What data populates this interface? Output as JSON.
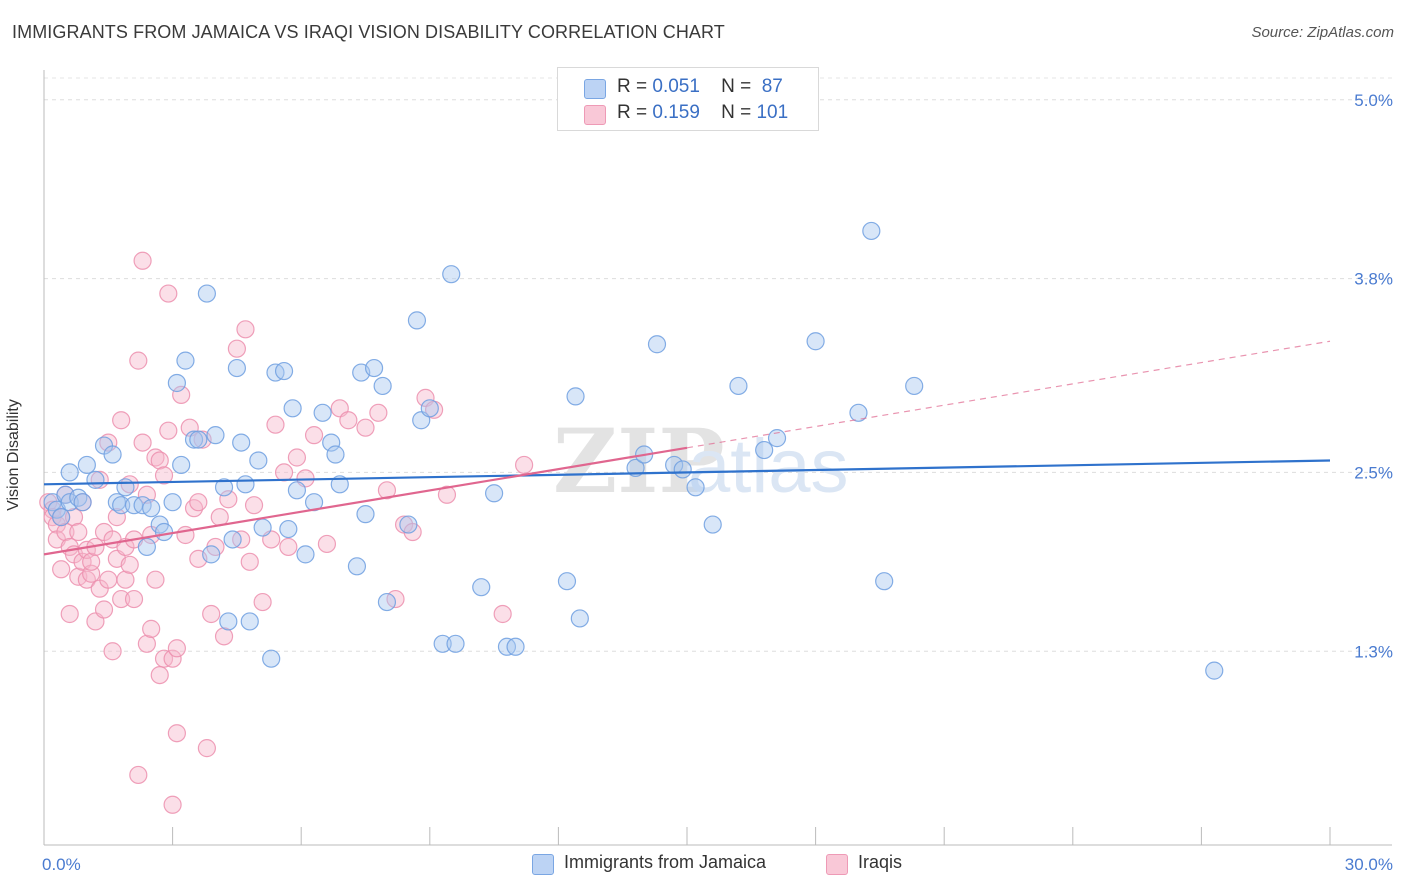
{
  "title": "IMMIGRANTS FROM JAMAICA VS IRAQI VISION DISABILITY CORRELATION CHART",
  "source": "Source: ZipAtlas.com",
  "watermark": {
    "zip": "ZIP",
    "atlas": "atlas"
  },
  "colors": {
    "blue_fill": "#a9c7f0",
    "blue_stroke": "#6f9fe0",
    "blue_line": "#2f72cc",
    "pink_fill": "#f6b9cc",
    "pink_stroke": "#ec8fae",
    "pink_line": "#e0668f",
    "axis_text": "#4a7bd0"
  },
  "legend": {
    "rows": [
      {
        "r_label": "R =",
        "r_value": "0.051",
        "n_label": "N =",
        "n_value": "87"
      },
      {
        "r_label": "R =",
        "r_value": "0.159",
        "n_label": "N =",
        "n_value": "101"
      }
    ]
  },
  "chart_data": {
    "type": "scatter",
    "title": "IMMIGRANTS FROM JAMAICA VS IRAQI VISION DISABILITY CORRELATION CHART",
    "xlabel": "",
    "ylabel": "Vision Disability",
    "xlim": [
      0,
      30
    ],
    "ylim": [
      0,
      5.2
    ],
    "x_tick_labels": [
      "0.0%",
      "30.0%"
    ],
    "y_ticks": [
      1.3,
      2.5,
      3.8,
      5.0
    ],
    "y_tick_labels": [
      "1.3%",
      "2.5%",
      "3.8%",
      "5.0%"
    ],
    "grid": true,
    "legend_position": "top-center",
    "series": [
      {
        "name": "Immigrants from Jamaica",
        "color": "#a9c7f0",
        "trend": {
          "x": [
            0,
            30
          ],
          "y": [
            2.42,
            2.58
          ],
          "dashed_from": null
        },
        "points": [
          [
            0.2,
            2.3
          ],
          [
            0.3,
            2.25
          ],
          [
            0.4,
            2.2
          ],
          [
            0.5,
            2.35
          ],
          [
            0.6,
            2.3
          ],
          [
            0.6,
            2.5
          ],
          [
            0.8,
            2.33
          ],
          [
            0.9,
            2.3
          ],
          [
            1.0,
            2.55
          ],
          [
            1.2,
            2.45
          ],
          [
            1.4,
            2.68
          ],
          [
            1.6,
            2.62
          ],
          [
            1.7,
            2.3
          ],
          [
            1.8,
            2.28
          ],
          [
            1.9,
            2.4
          ],
          [
            2.1,
            2.28
          ],
          [
            2.3,
            2.28
          ],
          [
            2.4,
            2.0
          ],
          [
            2.5,
            2.26
          ],
          [
            2.7,
            2.15
          ],
          [
            2.8,
            2.1
          ],
          [
            3.0,
            2.3
          ],
          [
            3.1,
            3.1
          ],
          [
            3.2,
            2.55
          ],
          [
            3.3,
            3.25
          ],
          [
            3.5,
            2.72
          ],
          [
            3.6,
            2.72
          ],
          [
            3.8,
            3.7
          ],
          [
            3.9,
            1.95
          ],
          [
            4.0,
            2.75
          ],
          [
            4.2,
            2.4
          ],
          [
            4.3,
            1.5
          ],
          [
            4.4,
            2.05
          ],
          [
            4.5,
            3.2
          ],
          [
            4.6,
            2.7
          ],
          [
            4.7,
            2.42
          ],
          [
            4.8,
            1.5
          ],
          [
            5.0,
            2.58
          ],
          [
            5.1,
            2.13
          ],
          [
            5.3,
            1.25
          ],
          [
            5.4,
            3.17
          ],
          [
            5.6,
            3.18
          ],
          [
            5.7,
            2.12
          ],
          [
            5.8,
            2.93
          ],
          [
            5.9,
            2.38
          ],
          [
            6.1,
            1.95
          ],
          [
            6.3,
            2.3
          ],
          [
            6.5,
            2.9
          ],
          [
            6.7,
            2.7
          ],
          [
            6.8,
            2.62
          ],
          [
            6.9,
            2.42
          ],
          [
            7.3,
            1.87
          ],
          [
            7.4,
            3.17
          ],
          [
            7.5,
            2.22
          ],
          [
            7.7,
            3.2
          ],
          [
            7.9,
            3.08
          ],
          [
            8.0,
            1.63
          ],
          [
            8.5,
            2.15
          ],
          [
            8.7,
            3.52
          ],
          [
            8.8,
            2.85
          ],
          [
            9.0,
            2.93
          ],
          [
            9.3,
            1.35
          ],
          [
            9.5,
            3.83
          ],
          [
            9.6,
            1.35
          ],
          [
            10.2,
            1.73
          ],
          [
            10.5,
            2.36
          ],
          [
            10.8,
            1.33
          ],
          [
            11.0,
            1.33
          ],
          [
            12.2,
            1.77
          ],
          [
            12.4,
            3.01
          ],
          [
            12.5,
            1.52
          ],
          [
            13.8,
            2.53
          ],
          [
            14.0,
            2.62
          ],
          [
            14.3,
            3.36
          ],
          [
            14.7,
            2.55
          ],
          [
            14.9,
            2.52
          ],
          [
            15.2,
            2.4
          ],
          [
            15.6,
            2.15
          ],
          [
            16.2,
            3.08
          ],
          [
            16.8,
            2.65
          ],
          [
            17.1,
            2.73
          ],
          [
            18.0,
            3.38
          ],
          [
            19.0,
            2.9
          ],
          [
            19.3,
            4.12
          ],
          [
            19.6,
            1.77
          ],
          [
            20.3,
            3.08
          ],
          [
            27.3,
            1.17
          ]
        ]
      },
      {
        "name": "Iraqis",
        "color": "#f6b9cc",
        "trend": {
          "x": [
            0,
            30
          ],
          "y": [
            1.95,
            3.38
          ],
          "dashed_from": 15
        },
        "points": [
          [
            0.1,
            2.3
          ],
          [
            0.2,
            2.25
          ],
          [
            0.2,
            2.2
          ],
          [
            0.3,
            2.15
          ],
          [
            0.3,
            2.05
          ],
          [
            0.4,
            1.85
          ],
          [
            0.4,
            2.2
          ],
          [
            0.5,
            2.35
          ],
          [
            0.5,
            2.1
          ],
          [
            0.6,
            1.55
          ],
          [
            0.6,
            2.0
          ],
          [
            0.7,
            1.95
          ],
          [
            0.7,
            2.2
          ],
          [
            0.8,
            2.1
          ],
          [
            0.8,
            1.8
          ],
          [
            0.9,
            1.9
          ],
          [
            0.9,
            2.3
          ],
          [
            1.0,
            1.78
          ],
          [
            1.0,
            1.98
          ],
          [
            1.1,
            1.82
          ],
          [
            1.1,
            1.9
          ],
          [
            1.2,
            1.5
          ],
          [
            1.2,
            2.0
          ],
          [
            1.3,
            1.72
          ],
          [
            1.3,
            2.45
          ],
          [
            1.4,
            1.58
          ],
          [
            1.4,
            2.1
          ],
          [
            1.5,
            1.78
          ],
          [
            1.5,
            2.7
          ],
          [
            1.6,
            1.3
          ],
          [
            1.6,
            2.05
          ],
          [
            1.7,
            1.92
          ],
          [
            1.7,
            2.2
          ],
          [
            1.8,
            2.85
          ],
          [
            1.8,
            1.65
          ],
          [
            1.9,
            1.78
          ],
          [
            1.9,
            2.0
          ],
          [
            2.0,
            1.88
          ],
          [
            2.0,
            2.42
          ],
          [
            2.1,
            2.05
          ],
          [
            2.1,
            1.65
          ],
          [
            2.2,
            3.25
          ],
          [
            2.2,
            0.47
          ],
          [
            2.3,
            2.7
          ],
          [
            2.3,
            3.92
          ],
          [
            2.4,
            2.35
          ],
          [
            2.4,
            1.35
          ],
          [
            2.5,
            1.45
          ],
          [
            2.5,
            2.08
          ],
          [
            2.6,
            1.78
          ],
          [
            2.6,
            2.6
          ],
          [
            2.7,
            2.58
          ],
          [
            2.7,
            1.14
          ],
          [
            2.8,
            2.48
          ],
          [
            2.8,
            1.25
          ],
          [
            2.9,
            2.78
          ],
          [
            2.9,
            3.7
          ],
          [
            3.0,
            1.25
          ],
          [
            3.0,
            0.27
          ],
          [
            3.1,
            1.32
          ],
          [
            3.1,
            0.75
          ],
          [
            3.2,
            3.02
          ],
          [
            3.3,
            2.08
          ],
          [
            3.4,
            2.8
          ],
          [
            3.5,
            2.26
          ],
          [
            3.6,
            2.3
          ],
          [
            3.6,
            1.92
          ],
          [
            3.7,
            2.72
          ],
          [
            3.8,
            0.65
          ],
          [
            3.9,
            1.55
          ],
          [
            4.0,
            2.0
          ],
          [
            4.1,
            2.2
          ],
          [
            4.2,
            1.4
          ],
          [
            4.3,
            2.32
          ],
          [
            4.5,
            3.33
          ],
          [
            4.6,
            2.05
          ],
          [
            4.7,
            3.46
          ],
          [
            4.8,
            1.9
          ],
          [
            4.9,
            2.28
          ],
          [
            5.1,
            1.63
          ],
          [
            5.3,
            2.05
          ],
          [
            5.4,
            2.82
          ],
          [
            5.6,
            2.5
          ],
          [
            5.7,
            2.0
          ],
          [
            5.9,
            2.6
          ],
          [
            6.1,
            2.46
          ],
          [
            6.3,
            2.75
          ],
          [
            6.6,
            2.02
          ],
          [
            6.9,
            2.93
          ],
          [
            7.1,
            2.85
          ],
          [
            7.5,
            2.8
          ],
          [
            7.8,
            2.9
          ],
          [
            8.0,
            2.38
          ],
          [
            8.2,
            1.65
          ],
          [
            8.4,
            2.15
          ],
          [
            8.6,
            2.1
          ],
          [
            8.9,
            3.0
          ],
          [
            9.1,
            2.92
          ],
          [
            9.4,
            2.35
          ],
          [
            10.7,
            1.55
          ],
          [
            11.2,
            2.55
          ]
        ]
      }
    ]
  },
  "bottom_legend": {
    "items": [
      {
        "label": "Immigrants from Jamaica"
      },
      {
        "label": "Iraqis"
      }
    ]
  }
}
